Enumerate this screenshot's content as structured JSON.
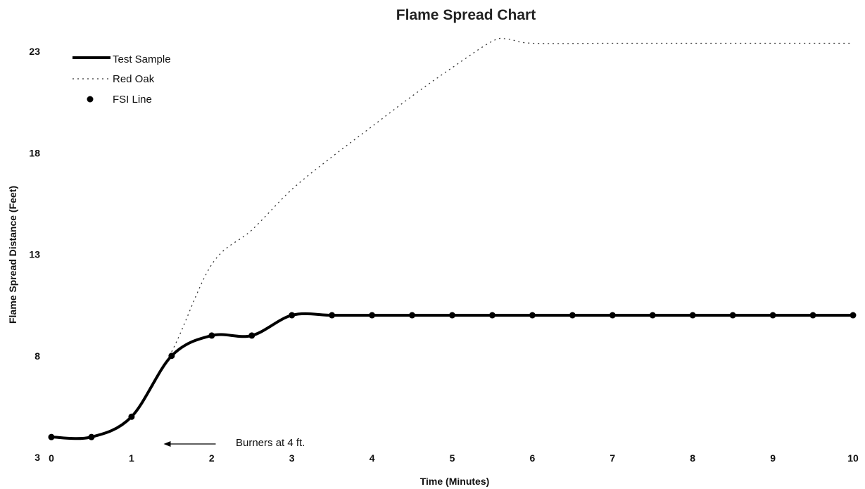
{
  "chart_data": {
    "type": "line",
    "title": "Flame Spread Chart",
    "xlabel": "Time (Minutes)",
    "ylabel": "Flame Spread Distance (Feet)",
    "xlim": [
      0,
      10
    ],
    "ylim": [
      3,
      24
    ],
    "x_ticks": [
      0,
      1,
      2,
      3,
      4,
      5,
      6,
      7,
      8,
      9,
      10
    ],
    "y_ticks": [
      3,
      8,
      13,
      18,
      23
    ],
    "grid": false,
    "legend_position": "top-left",
    "series": [
      {
        "name": "Test Sample",
        "style": "solid-thick",
        "color": "#000000",
        "x": [
          0,
          0.5,
          1,
          1.5,
          2,
          2.5,
          3,
          3.5,
          4,
          4.5,
          5,
          5.5,
          6,
          6.5,
          7,
          7.5,
          8,
          8.5,
          9,
          9.5,
          10
        ],
        "y": [
          4,
          4,
          5,
          8,
          9,
          9,
          10,
          10,
          10,
          10,
          10,
          10,
          10,
          10,
          10,
          10,
          10,
          10,
          10,
          10,
          10
        ]
      },
      {
        "name": "Red Oak",
        "style": "dotted",
        "color": "#333333",
        "x": [
          0,
          0.5,
          1,
          1.5,
          2,
          2.5,
          3,
          3.5,
          4,
          4.5,
          5,
          5.5,
          5.7,
          6,
          7,
          8,
          9,
          10
        ],
        "y": [
          4,
          4,
          5,
          8.2,
          12.5,
          14.2,
          16.2,
          17.8,
          19.3,
          20.8,
          22.2,
          23.5,
          23.6,
          23.4,
          23.4,
          23.4,
          23.4,
          23.4
        ]
      },
      {
        "name": "FSI Line",
        "style": "markers",
        "color": "#000000",
        "x": [
          0,
          0.5,
          1,
          1.5,
          2,
          2.5,
          3,
          3.5,
          4,
          4.5,
          5,
          5.5,
          6,
          6.5,
          7,
          7.5,
          8,
          8.5,
          9,
          9.5,
          10
        ],
        "y": [
          4,
          4,
          5,
          8,
          9,
          9,
          10,
          10,
          10,
          10,
          10,
          10,
          10,
          10,
          10,
          10,
          10,
          10,
          10,
          10,
          10
        ]
      }
    ],
    "annotations": [
      {
        "text": "Burners at 4 ft.",
        "arrow_from_x": 2.05,
        "arrow_to_x": 1.4,
        "y": 4.1
      }
    ]
  }
}
